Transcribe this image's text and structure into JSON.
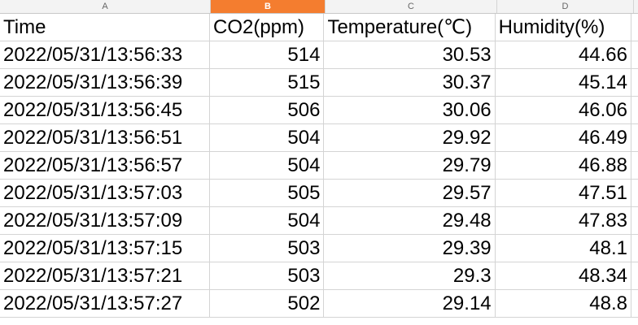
{
  "columns": [
    {
      "letter": "A",
      "selected": false
    },
    {
      "letter": "B",
      "selected": true
    },
    {
      "letter": "C",
      "selected": false
    },
    {
      "letter": "D",
      "selected": false
    }
  ],
  "header_row": [
    "Time",
    "CO2(ppm)",
    "Temperature(℃)",
    "Humidity(%)"
  ],
  "rows": [
    [
      "2022/05/31/13:56:33",
      "514",
      "30.53",
      "44.66"
    ],
    [
      "2022/05/31/13:56:39",
      "515",
      "30.37",
      "45.14"
    ],
    [
      "2022/05/31/13:56:45",
      "506",
      "30.06",
      "46.06"
    ],
    [
      "2022/05/31/13:56:51",
      "504",
      "29.92",
      "46.49"
    ],
    [
      "2022/05/31/13:56:57",
      "504",
      "29.79",
      "46.88"
    ],
    [
      "2022/05/31/13:57:03",
      "505",
      "29.57",
      "47.51"
    ],
    [
      "2022/05/31/13:57:09",
      "504",
      "29.48",
      "47.83"
    ],
    [
      "2022/05/31/13:57:15",
      "503",
      "29.39",
      "48.1"
    ],
    [
      "2022/05/31/13:57:21",
      "503",
      "29.3",
      "48.34"
    ],
    [
      "2022/05/31/13:57:27",
      "502",
      "29.14",
      "48.8"
    ]
  ],
  "colors": {
    "selected_column_header": "#f47d2f",
    "grid_line": "#d4d4d4",
    "header_background": "#f3f3f3"
  }
}
